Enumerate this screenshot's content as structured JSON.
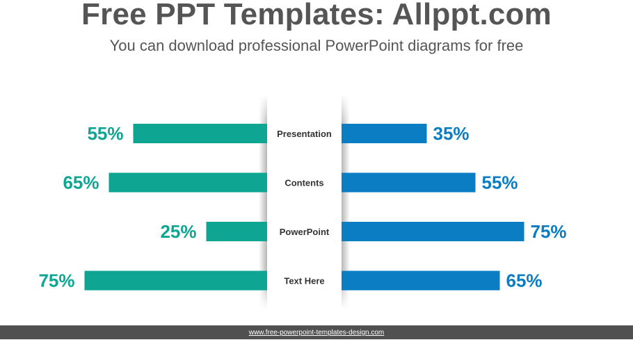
{
  "header": {
    "title": "Free PPT Templates: Allppt.com",
    "subtitle": "You can download professional PowerPoint diagrams for free"
  },
  "footer": {
    "link_text": "www.free-powerpoint-templates-design.com"
  },
  "colors": {
    "left_series": "#0ea693",
    "right_series": "#0a7dc3",
    "label_text": "#333333",
    "footer_bg": "#505050"
  },
  "chart_data": {
    "type": "bar",
    "orientation": "horizontal-butterfly",
    "categories": [
      "Presentation",
      "Contents",
      "PowerPoint",
      "Text Here"
    ],
    "series": [
      {
        "side": "left",
        "values": [
          55,
          65,
          25,
          75
        ],
        "labels": [
          "55%",
          "65%",
          "25%",
          "75%"
        ]
      },
      {
        "side": "right",
        "values": [
          35,
          55,
          75,
          65
        ],
        "labels": [
          "35%",
          "55%",
          "75%",
          "65%"
        ]
      }
    ],
    "unit": "%",
    "xlim": [
      0,
      100
    ],
    "grid": false,
    "legend": "none"
  }
}
